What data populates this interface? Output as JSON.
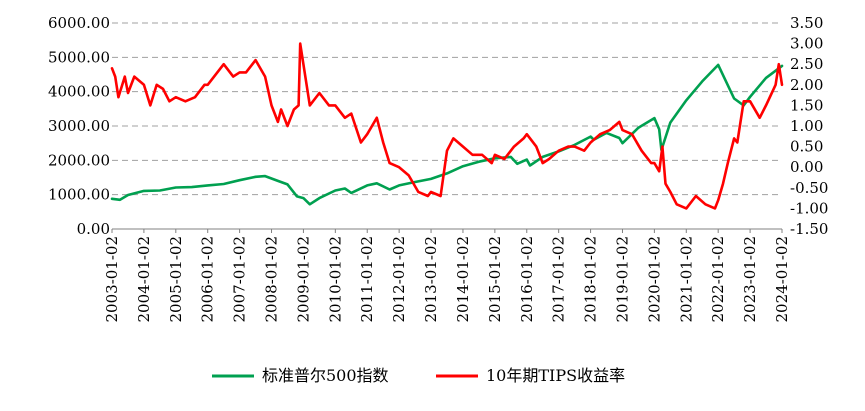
{
  "chart_data": {
    "type": "line",
    "title": "",
    "xlabel": "",
    "ylabel": "",
    "x_ticks": [
      "2003-01-02",
      "2004-01-02",
      "2005-01-02",
      "2006-01-02",
      "2007-01-02",
      "2008-01-02",
      "2009-01-02",
      "2010-01-02",
      "2011-01-02",
      "2012-01-02",
      "2013-01-02",
      "2014-01-02",
      "2015-01-02",
      "2016-01-02",
      "2017-01-02",
      "2018-01-02",
      "2019-01-02",
      "2020-01-02",
      "2021-01-02",
      "2022-01-02",
      "2023-01-02",
      "2024-01-02"
    ],
    "y_left_ticks": [
      "0.00",
      "1000.00",
      "2000.00",
      "3000.00",
      "4000.00",
      "5000.00",
      "6000.00"
    ],
    "y_left_range": [
      0,
      6000
    ],
    "y_right_ticks": [
      "-1.50",
      "-1.00",
      "-0.50",
      "0.00",
      "0.50",
      "1.00",
      "1.50",
      "2.00",
      "2.50",
      "3.00",
      "3.50"
    ],
    "y_right_range": [
      -1.5,
      3.5
    ],
    "grid": "horizontal dashed",
    "legend_position": "bottom",
    "series": [
      {
        "name": "标准普尔500指数",
        "axis": "left",
        "color": "#00a050",
        "x": [
          2003.0,
          2003.25,
          2003.5,
          2004.0,
          2004.5,
          2005.0,
          2005.5,
          2006.0,
          2006.5,
          2007.0,
          2007.5,
          2007.8,
          2008.2,
          2008.5,
          2008.8,
          2009.0,
          2009.2,
          2009.5,
          2010.0,
          2010.3,
          2010.5,
          2011.0,
          2011.3,
          2011.7,
          2012.0,
          2012.5,
          2013.0,
          2013.5,
          2014.0,
          2014.5,
          2015.0,
          2015.5,
          2015.7,
          2016.0,
          2016.1,
          2016.5,
          2017.0,
          2017.5,
          2018.0,
          2018.1,
          2018.5,
          2018.9,
          2019.0,
          2019.5,
          2020.0,
          2020.15,
          2020.22,
          2020.5,
          2021.0,
          2021.5,
          2022.0,
          2022.5,
          2022.8,
          2023.0,
          2023.5,
          2024.0
        ],
        "values": [
          880,
          850,
          990,
          1110,
          1120,
          1210,
          1220,
          1270,
          1310,
          1420,
          1520,
          1540,
          1400,
          1300,
          950,
          900,
          720,
          900,
          1120,
          1180,
          1050,
          1270,
          1330,
          1150,
          1270,
          1370,
          1460,
          1620,
          1830,
          1960,
          2060,
          2100,
          1900,
          2020,
          1850,
          2100,
          2260,
          2450,
          2690,
          2600,
          2800,
          2650,
          2500,
          2950,
          3230,
          2900,
          2300,
          3100,
          3750,
          4300,
          4780,
          3800,
          3600,
          3850,
          4400,
          4750
        ]
      },
      {
        "name": "10年期TIPS收益率",
        "axis": "right",
        "color": "#ff0000",
        "x": [
          2003.0,
          2003.1,
          2003.2,
          2003.4,
          2003.5,
          2003.7,
          2004.0,
          2004.2,
          2004.4,
          2004.6,
          2004.8,
          2005.0,
          2005.3,
          2005.6,
          2005.9,
          2006.0,
          2006.3,
          2006.5,
          2006.8,
          2007.0,
          2007.2,
          2007.4,
          2007.5,
          2007.8,
          2008.0,
          2008.2,
          2008.3,
          2008.5,
          2008.7,
          2008.85,
          2008.9,
          2009.0,
          2009.2,
          2009.5,
          2009.8,
          2010.0,
          2010.3,
          2010.5,
          2010.8,
          2011.0,
          2011.3,
          2011.5,
          2011.7,
          2012.0,
          2012.3,
          2012.6,
          2012.9,
          2013.0,
          2013.3,
          2013.5,
          2013.7,
          2014.0,
          2014.3,
          2014.6,
          2014.9,
          2015.0,
          2015.3,
          2015.6,
          2015.9,
          2016.0,
          2016.3,
          2016.5,
          2016.7,
          2017.0,
          2017.3,
          2017.5,
          2017.8,
          2018.0,
          2018.3,
          2018.6,
          2018.9,
          2019.0,
          2019.3,
          2019.6,
          2019.9,
          2020.0,
          2020.15,
          2020.25,
          2020.35,
          2020.5,
          2020.7,
          2021.0,
          2021.3,
          2021.6,
          2021.9,
          2022.0,
          2022.15,
          2022.3,
          2022.5,
          2022.6,
          2022.8,
          2023.0,
          2023.3,
          2023.5,
          2023.8,
          2023.9,
          2024.0
        ],
        "values": [
          2.4,
          2.2,
          1.7,
          2.2,
          1.8,
          2.2,
          2.0,
          1.5,
          2.0,
          1.9,
          1.6,
          1.7,
          1.6,
          1.7,
          2.0,
          2.0,
          2.3,
          2.5,
          2.2,
          2.3,
          2.3,
          2.5,
          2.6,
          2.2,
          1.5,
          1.1,
          1.4,
          1.0,
          1.4,
          1.5,
          3.0,
          2.5,
          1.5,
          1.8,
          1.5,
          1.5,
          1.2,
          1.3,
          0.6,
          0.8,
          1.2,
          0.6,
          0.1,
          0.0,
          -0.2,
          -0.6,
          -0.7,
          -0.6,
          -0.7,
          0.4,
          0.7,
          0.5,
          0.3,
          0.3,
          0.1,
          0.3,
          0.2,
          0.5,
          0.7,
          0.8,
          0.5,
          0.1,
          0.2,
          0.4,
          0.5,
          0.5,
          0.4,
          0.6,
          0.8,
          0.9,
          1.1,
          0.9,
          0.8,
          0.4,
          0.1,
          0.1,
          -0.1,
          0.5,
          -0.4,
          -0.6,
          -0.9,
          -1.0,
          -0.7,
          -0.9,
          -1.0,
          -0.8,
          -0.4,
          0.1,
          0.7,
          0.6,
          1.6,
          1.6,
          1.2,
          1.5,
          2.0,
          2.5,
          2.0
        ]
      }
    ]
  }
}
